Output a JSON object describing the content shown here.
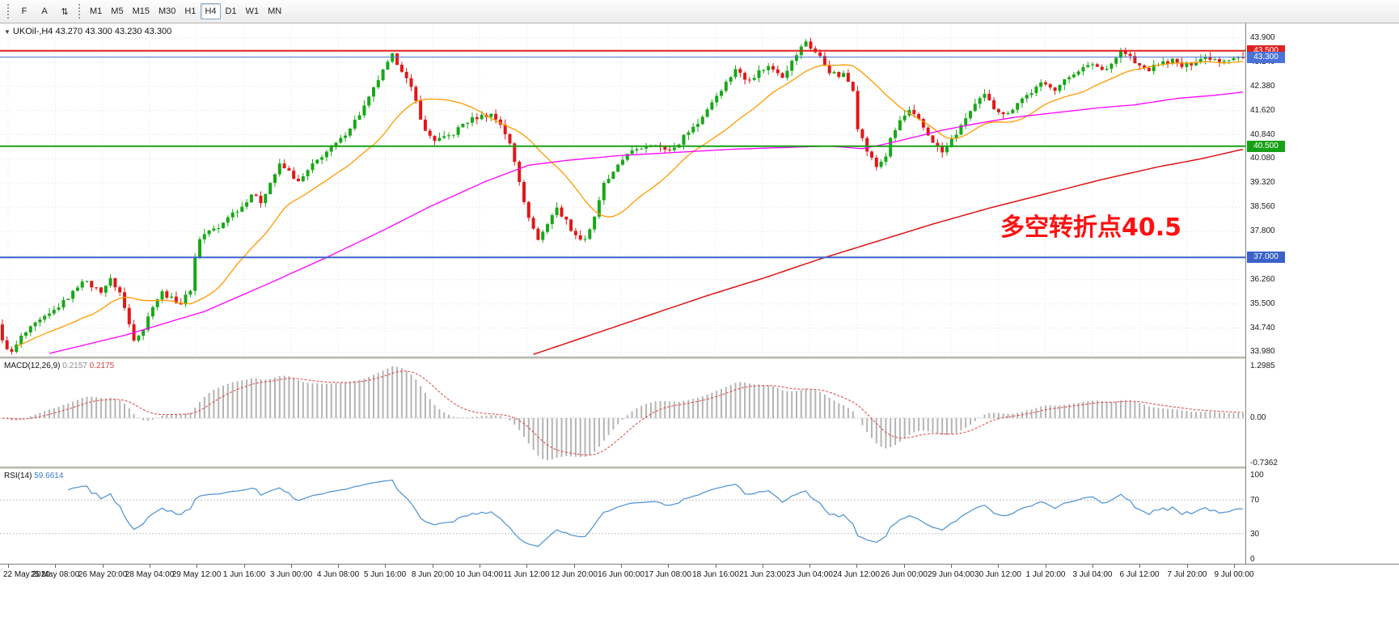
{
  "toolbar": {
    "tools": [
      {
        "id": "f",
        "label": "F"
      },
      {
        "id": "a",
        "label": "A"
      },
      {
        "id": "arrows",
        "label": "⇅"
      }
    ],
    "timeframes": [
      "M1",
      "M5",
      "M15",
      "M30",
      "H1",
      "H4",
      "D1",
      "W1",
      "MN"
    ],
    "active_timeframe": "H4"
  },
  "chart": {
    "symbol": "UKOil-,H4",
    "ohlc_text": "43.270 43.300 43.230 43.300"
  },
  "macd_panel": {
    "name": "MACD(12,26,9)",
    "value_main": "0.2157",
    "value_signal": "0.2175",
    "axis_top": "1.2985",
    "axis_zero": "0.00",
    "axis_bottom": "-0.7362"
  },
  "rsi_panel": {
    "name": "RSI(14)",
    "value": "59.6614",
    "axis": [
      "100",
      "70",
      "30",
      "0"
    ]
  },
  "chart_data": {
    "type": "candlestick",
    "symbol": "UKOil-",
    "timeframe": "H4",
    "ohlc_current": {
      "open": 43.27,
      "high": 43.3,
      "low": 43.23,
      "close": 43.3
    },
    "up_color": "#18a818",
    "down_color": "#e01818",
    "grid_top_price": 43.9,
    "grid_step": 0.76,
    "ylim": [
      33.82,
      44.33
    ],
    "price_axis_labels": [
      "43.900",
      "43.140",
      "42.380",
      "41.620",
      "40.840",
      "40.080",
      "39.320",
      "38.560",
      "37.800",
      "37.040",
      "36.260",
      "35.500",
      "34.740",
      "33.980"
    ],
    "time_axis_labels": [
      "22 May 2020",
      "25 May 08:00",
      "26 May 20:00",
      "28 May 04:00",
      "29 May 12:00",
      "1 Jun 16:00",
      "3 Jun 00:00",
      "4 Jun 08:00",
      "5 Jun 16:00",
      "8 Jun 20:00",
      "10 Jun 04:00",
      "11 Jun 12:00",
      "12 Jun 20:00",
      "16 Jun 00:00",
      "17 Jun 08:00",
      "18 Jun 16:00",
      "21 Jun 23:00",
      "23 Jun 04:00",
      "24 Jun 12:00",
      "26 Jun 00:00",
      "29 Jun 04:00",
      "30 Jun 12:00",
      "1 Jul 20:00",
      "3 Jul 04:00",
      "6 Jul 12:00",
      "7 Jul 20:00",
      "9 Jul 00:00"
    ],
    "candle_count": 265,
    "close_anchors": [
      [
        0,
        34.35
      ],
      [
        2,
        33.99
      ],
      [
        4,
        34.5
      ],
      [
        7,
        34.9
      ],
      [
        10,
        35.2
      ],
      [
        13,
        35.6
      ],
      [
        15,
        35.9
      ],
      [
        17,
        36.3
      ],
      [
        19,
        36.1
      ],
      [
        21,
        35.95
      ],
      [
        23,
        36.3
      ],
      [
        25,
        35.9
      ],
      [
        27,
        34.9
      ],
      [
        28,
        34.45
      ],
      [
        30,
        34.75
      ],
      [
        32,
        35.5
      ],
      [
        34,
        35.9
      ],
      [
        36,
        35.7
      ],
      [
        38,
        35.55
      ],
      [
        40,
        36.0
      ],
      [
        41,
        37.0
      ],
      [
        42,
        37.6
      ],
      [
        44,
        37.85
      ],
      [
        46,
        37.9
      ],
      [
        48,
        38.3
      ],
      [
        51,
        38.6
      ],
      [
        53,
        39.0
      ],
      [
        55,
        38.75
      ],
      [
        57,
        39.35
      ],
      [
        59,
        39.9
      ],
      [
        61,
        39.7
      ],
      [
        63,
        39.35
      ],
      [
        66,
        39.9
      ],
      [
        68,
        40.2
      ],
      [
        70,
        40.45
      ],
      [
        72,
        40.7
      ],
      [
        74,
        41.1
      ],
      [
        76,
        41.5
      ],
      [
        78,
        42.0
      ],
      [
        80,
        42.6
      ],
      [
        82,
        43.1
      ],
      [
        83,
        43.35
      ],
      [
        85,
        42.9
      ],
      [
        87,
        42.3
      ],
      [
        88,
        41.9
      ],
      [
        89,
        41.4
      ],
      [
        90,
        40.95
      ],
      [
        92,
        40.7
      ],
      [
        94,
        40.75
      ],
      [
        96,
        40.9
      ],
      [
        98,
        41.2
      ],
      [
        100,
        41.35
      ],
      [
        102,
        41.45
      ],
      [
        104,
        41.5
      ],
      [
        106,
        41.2
      ],
      [
        107,
        40.9
      ],
      [
        108,
        40.55
      ],
      [
        109,
        40.0
      ],
      [
        110,
        39.4
      ],
      [
        111,
        38.8
      ],
      [
        112,
        38.3
      ],
      [
        113,
        37.85
      ],
      [
        114,
        37.6
      ],
      [
        115,
        37.8
      ],
      [
        116,
        38.05
      ],
      [
        118,
        38.6
      ],
      [
        119,
        38.3
      ],
      [
        120,
        38.15
      ],
      [
        121,
        37.9
      ],
      [
        122,
        37.65
      ],
      [
        124,
        37.6
      ],
      [
        125,
        37.9
      ],
      [
        126,
        38.3
      ],
      [
        127,
        38.75
      ],
      [
        128,
        39.3
      ],
      [
        130,
        39.65
      ],
      [
        131,
        39.85
      ],
      [
        133,
        40.3
      ],
      [
        135,
        40.35
      ],
      [
        136,
        40.45
      ],
      [
        138,
        40.55
      ],
      [
        139,
        40.6
      ],
      [
        141,
        40.35
      ],
      [
        143,
        40.45
      ],
      [
        144,
        40.6
      ],
      [
        146,
        41.0
      ],
      [
        148,
        41.2
      ],
      [
        149,
        41.45
      ],
      [
        151,
        41.9
      ],
      [
        153,
        42.3
      ],
      [
        155,
        42.7
      ],
      [
        156,
        42.95
      ],
      [
        158,
        42.6
      ],
      [
        160,
        42.7
      ],
      [
        161,
        42.85
      ],
      [
        163,
        43.0
      ],
      [
        165,
        42.85
      ],
      [
        166,
        42.7
      ],
      [
        168,
        43.15
      ],
      [
        170,
        43.6
      ],
      [
        171,
        43.8
      ],
      [
        172,
        43.6
      ],
      [
        174,
        43.3
      ],
      [
        176,
        42.85
      ],
      [
        178,
        42.7
      ],
      [
        179,
        42.75
      ],
      [
        181,
        42.3
      ],
      [
        182,
        41.1
      ],
      [
        184,
        40.35
      ],
      [
        186,
        39.85
      ],
      [
        188,
        40.2
      ],
      [
        189,
        40.7
      ],
      [
        191,
        41.3
      ],
      [
        193,
        41.6
      ],
      [
        195,
        41.3
      ],
      [
        197,
        40.85
      ],
      [
        199,
        40.45
      ],
      [
        200,
        40.3
      ],
      [
        202,
        40.7
      ],
      [
        204,
        41.1
      ],
      [
        205,
        41.4
      ],
      [
        207,
        41.8
      ],
      [
        209,
        42.1
      ],
      [
        211,
        41.7
      ],
      [
        213,
        41.55
      ],
      [
        214,
        41.5
      ],
      [
        216,
        41.9
      ],
      [
        218,
        42.1
      ],
      [
        219,
        42.2
      ],
      [
        221,
        42.45
      ],
      [
        223,
        42.4
      ],
      [
        224,
        42.3
      ],
      [
        226,
        42.55
      ],
      [
        228,
        42.8
      ],
      [
        229,
        42.9
      ],
      [
        231,
        43.0
      ],
      [
        232,
        43.1
      ],
      [
        234,
        42.9
      ],
      [
        236,
        43.1
      ],
      [
        237,
        43.3
      ],
      [
        238,
        43.5
      ],
      [
        240,
        43.3
      ],
      [
        241,
        43.1
      ],
      [
        243,
        42.95
      ],
      [
        244,
        42.9
      ],
      [
        246,
        43.1
      ],
      [
        248,
        43.15
      ],
      [
        249,
        43.2
      ],
      [
        251,
        43.0
      ],
      [
        253,
        43.1
      ],
      [
        254,
        43.2
      ],
      [
        256,
        43.3
      ],
      [
        258,
        43.25
      ],
      [
        259,
        43.2
      ],
      [
        261,
        43.25
      ],
      [
        262,
        43.3
      ],
      [
        264,
        43.3
      ]
    ],
    "hlines": [
      {
        "price": 43.5,
        "label": "43.500",
        "color": "#e02020",
        "width": 2
      },
      {
        "price": 43.3,
        "label": "43.300",
        "color": "#4a72d8",
        "width": 1,
        "current_price": true
      },
      {
        "price": 40.5,
        "label": "40.500",
        "color": "#16a016",
        "width": 2
      },
      {
        "price": 37.0,
        "label": "37.000",
        "color": "#3a62c8",
        "width": 2
      }
    ],
    "moving_averages": {
      "fast": {
        "type": "sma",
        "period": 20,
        "color": "#ff9a00"
      },
      "medium": {
        "color": "#ff00ff",
        "start_index": 10,
        "anchors": [
          [
            10,
            33.98
          ],
          [
            26,
            34.55
          ],
          [
            43,
            35.3
          ],
          [
            57,
            36.2
          ],
          [
            69,
            37.0
          ],
          [
            81,
            37.85
          ],
          [
            91,
            38.6
          ],
          [
            103,
            39.4
          ],
          [
            112,
            39.9
          ],
          [
            120,
            40.05
          ],
          [
            131,
            40.2
          ],
          [
            143,
            40.3
          ],
          [
            155,
            40.4
          ],
          [
            165,
            40.45
          ],
          [
            176,
            40.5
          ],
          [
            183,
            40.42
          ],
          [
            189,
            40.6
          ],
          [
            200,
            41.0
          ],
          [
            207,
            41.2
          ],
          [
            215,
            41.4
          ],
          [
            224,
            41.55
          ],
          [
            233,
            41.7
          ],
          [
            241,
            41.8
          ],
          [
            250,
            42.0
          ],
          [
            258,
            42.1
          ],
          [
            264,
            42.2
          ]
        ]
      },
      "slow": {
        "color": "#dd1414",
        "start_index": 113,
        "anchors": [
          [
            113,
            33.95
          ],
          [
            125,
            34.55
          ],
          [
            138,
            35.2
          ],
          [
            150,
            35.8
          ],
          [
            162,
            36.35
          ],
          [
            174,
            36.95
          ],
          [
            186,
            37.5
          ],
          [
            198,
            38.05
          ],
          [
            210,
            38.55
          ],
          [
            222,
            39.0
          ],
          [
            234,
            39.45
          ],
          [
            246,
            39.85
          ],
          [
            255,
            40.1
          ],
          [
            264,
            40.4
          ]
        ]
      }
    },
    "macd": {
      "fast": 12,
      "slow": 26,
      "signal": 9,
      "hist_color": "#b4b4b4",
      "signal_color": "#e04040",
      "axis_max": 1.2985,
      "axis_min": -0.7362
    },
    "rsi": {
      "period": 14,
      "color": "#4a90d2",
      "levels": [
        70,
        30
      ],
      "range": [
        0,
        100
      ],
      "current": 59.6614
    },
    "annotation": {
      "text": "多空转折点40.5",
      "color": "#ff1010"
    }
  }
}
